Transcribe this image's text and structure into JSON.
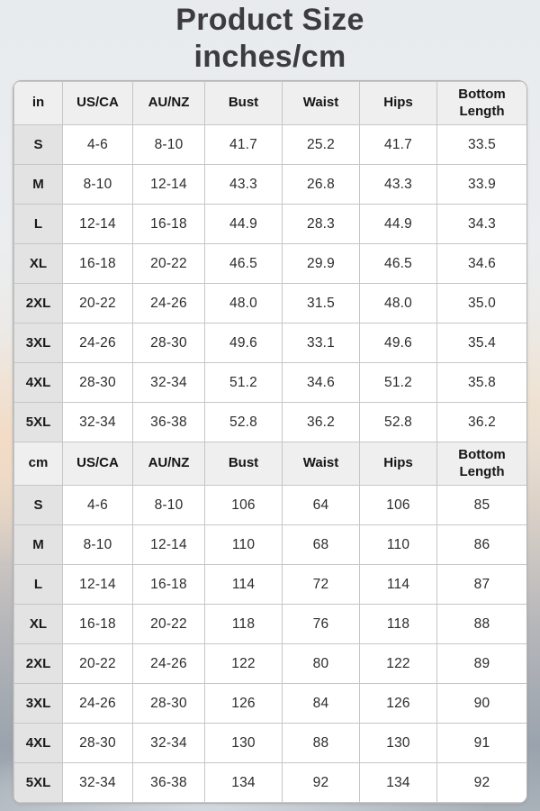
{
  "colors": {
    "header_bg": "#efefef",
    "label_bg": "#e3e3e3",
    "cell_border": "#c6c6c6",
    "table_outline": "#b3b3b3",
    "title_text": "#3c3c40",
    "bg_top": "#e7ebee",
    "bg_warm": "#f2dfc9",
    "bg_bottom": "#9aa3ad"
  },
  "chart_data": {
    "type": "table",
    "title": "Product Size",
    "subtitle": "inches/cm",
    "sections": [
      {
        "unit_label": "in",
        "columns": [
          "US/CA",
          "AU/NZ",
          "Bust",
          "Waist",
          "Hips",
          "Bottom Length"
        ],
        "rows": [
          {
            "size": "S",
            "values": [
              "4-6",
              "8-10",
              "41.7",
              "25.2",
              "41.7",
              "33.5"
            ]
          },
          {
            "size": "M",
            "values": [
              "8-10",
              "12-14",
              "43.3",
              "26.8",
              "43.3",
              "33.9"
            ]
          },
          {
            "size": "L",
            "values": [
              "12-14",
              "16-18",
              "44.9",
              "28.3",
              "44.9",
              "34.3"
            ]
          },
          {
            "size": "XL",
            "values": [
              "16-18",
              "20-22",
              "46.5",
              "29.9",
              "46.5",
              "34.6"
            ]
          },
          {
            "size": "2XL",
            "values": [
              "20-22",
              "24-26",
              "48.0",
              "31.5",
              "48.0",
              "35.0"
            ]
          },
          {
            "size": "3XL",
            "values": [
              "24-26",
              "28-30",
              "49.6",
              "33.1",
              "49.6",
              "35.4"
            ]
          },
          {
            "size": "4XL",
            "values": [
              "28-30",
              "32-34",
              "51.2",
              "34.6",
              "51.2",
              "35.8"
            ]
          },
          {
            "size": "5XL",
            "values": [
              "32-34",
              "36-38",
              "52.8",
              "36.2",
              "52.8",
              "36.2"
            ]
          }
        ]
      },
      {
        "unit_label": "cm",
        "columns": [
          "US/CA",
          "AU/NZ",
          "Bust",
          "Waist",
          "Hips",
          "Bottom Length"
        ],
        "rows": [
          {
            "size": "S",
            "values": [
              "4-6",
              "8-10",
              "106",
              "64",
              "106",
              "85"
            ]
          },
          {
            "size": "M",
            "values": [
              "8-10",
              "12-14",
              "110",
              "68",
              "110",
              "86"
            ]
          },
          {
            "size": "L",
            "values": [
              "12-14",
              "16-18",
              "114",
              "72",
              "114",
              "87"
            ]
          },
          {
            "size": "XL",
            "values": [
              "16-18",
              "20-22",
              "118",
              "76",
              "118",
              "88"
            ]
          },
          {
            "size": "2XL",
            "values": [
              "20-22",
              "24-26",
              "122",
              "80",
              "122",
              "89"
            ]
          },
          {
            "size": "3XL",
            "values": [
              "24-26",
              "28-30",
              "126",
              "84",
              "126",
              "90"
            ]
          },
          {
            "size": "4XL",
            "values": [
              "28-30",
              "32-34",
              "130",
              "88",
              "130",
              "91"
            ]
          },
          {
            "size": "5XL",
            "values": [
              "32-34",
              "36-38",
              "134",
              "92",
              "134",
              "92"
            ]
          }
        ]
      }
    ]
  }
}
